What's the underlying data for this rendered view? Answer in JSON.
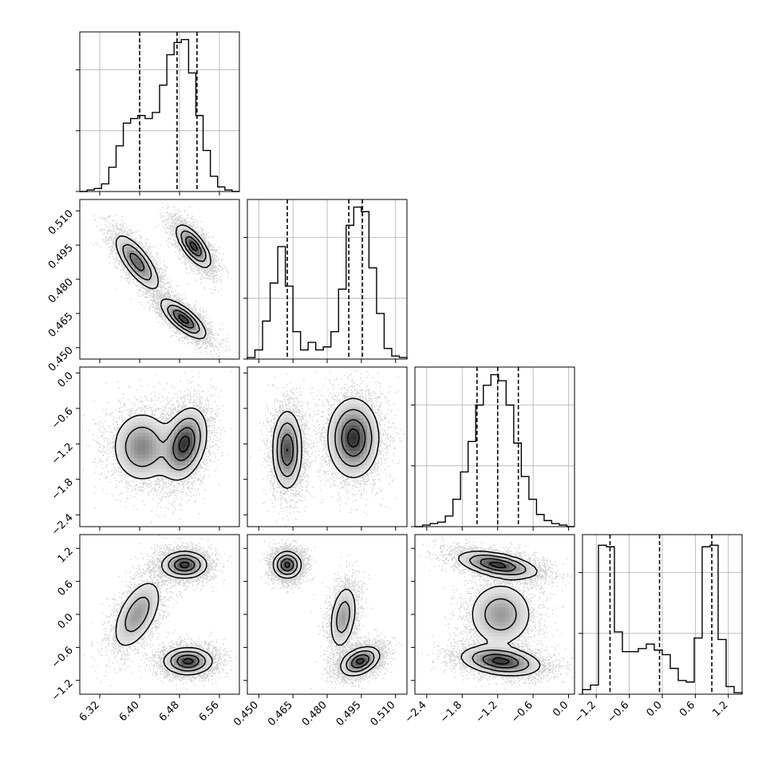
{
  "chart_data": {
    "type": "corner",
    "parameters": 4,
    "axes": [
      {
        "range": [
          6.28,
          6.6
        ],
        "ticks": [
          6.32,
          6.4,
          6.48,
          6.56
        ],
        "tick_labels": [
          "6.32",
          "6.40",
          "6.48",
          "6.56"
        ]
      },
      {
        "range": [
          0.445,
          0.515
        ],
        "ticks": [
          0.45,
          0.465,
          0.48,
          0.495,
          0.51
        ],
        "tick_labels": [
          "0.450",
          "0.465",
          "0.480",
          "0.495",
          "0.510"
        ]
      },
      {
        "range": [
          -2.6,
          0.1
        ],
        "ticks": [
          -2.4,
          -1.8,
          -1.2,
          -0.6,
          0.0
        ],
        "tick_labels": [
          "−2.4",
          "−1.8",
          "−1.2",
          "−0.6",
          "0.0"
        ]
      },
      {
        "range": [
          -1.45,
          1.45
        ],
        "ticks": [
          -1.2,
          -0.6,
          0.0,
          0.6,
          1.2
        ],
        "tick_labels": [
          "−1.2",
          "−0.6",
          "0.0",
          "0.6",
          "1.2"
        ]
      }
    ],
    "histograms": [
      {
        "param": 0,
        "bins_lo": 6.28,
        "bins_hi": 6.6,
        "counts": [
          0,
          0.01,
          0.02,
          0.05,
          0.16,
          0.3,
          0.45,
          0.48,
          0.5,
          0.48,
          0.52,
          0.7,
          0.9,
          0.98,
          1.0,
          0.78,
          0.5,
          0.27,
          0.1,
          0.03,
          0.01,
          0
        ],
        "quantiles": [
          6.4,
          6.475,
          6.515
        ],
        "hist_ylim": [
          0,
          1.05
        ]
      },
      {
        "param": 1,
        "bins_lo": 0.445,
        "bins_hi": 0.515,
        "counts": [
          0.01,
          0.06,
          0.25,
          0.5,
          0.74,
          0.48,
          0.18,
          0.06,
          0.11,
          0.06,
          0.08,
          0.18,
          0.46,
          0.88,
          1.0,
          0.97,
          0.6,
          0.3,
          0.07,
          0.02,
          0.01
        ],
        "quantiles": [
          0.4625,
          0.4895,
          0.4955
        ],
        "hist_ylim": [
          0,
          1.05
        ]
      },
      {
        "param": 2,
        "bins_lo": -2.6,
        "bins_hi": 0.1,
        "counts": [
          0,
          0.01,
          0.02,
          0.03,
          0.07,
          0.18,
          0.36,
          0.56,
          0.8,
          0.93,
          1.0,
          0.96,
          0.8,
          0.55,
          0.33,
          0.18,
          0.08,
          0.04,
          0.02,
          0.01,
          0.0
        ],
        "quantiles": [
          -1.55,
          -1.2,
          -0.85
        ],
        "hist_ylim": [
          0,
          1.05
        ]
      },
      {
        "param": 3,
        "bins_lo": -1.45,
        "bins_hi": 1.45,
        "counts": [
          0.03,
          0.06,
          0.98,
          0.97,
          0.41,
          0.28,
          0.28,
          0.3,
          0.33,
          0.29,
          0.26,
          0.17,
          0.09,
          0.08,
          0.37,
          0.97,
          0.98,
          0.36,
          0.05,
          0.01
        ],
        "quantiles": [
          -0.95,
          -0.05,
          0.9
        ],
        "hist_ylim": [
          0,
          1.05
        ]
      }
    ],
    "pair_modes": [
      {
        "x_param": 0,
        "y_param": 1,
        "modes": [
          {
            "cx": 6.395,
            "cy": 0.4875,
            "sx": 0.022,
            "sy": 0.006,
            "rho": -0.75,
            "w": 0.8
          },
          {
            "cx": 6.508,
            "cy": 0.4945,
            "sx": 0.017,
            "sy": 0.0046,
            "rho": -0.7,
            "w": 1.0
          },
          {
            "cx": 6.488,
            "cy": 0.4625,
            "sx": 0.022,
            "sy": 0.0042,
            "rho": -0.75,
            "w": 1.0
          }
        ]
      },
      {
        "x_param": 0,
        "y_param": 2,
        "modes": [
          {
            "cx": 6.405,
            "cy": -1.25,
            "sx": 0.03,
            "sy": 0.3,
            "rho": 0.0,
            "w": 0.65
          },
          {
            "cx": 6.49,
            "cy": -1.2,
            "sx": 0.022,
            "sy": 0.3,
            "rho": 0.3,
            "w": 1.0
          }
        ]
      },
      {
        "x_param": 1,
        "y_param": 2,
        "modes": [
          {
            "cx": 0.4625,
            "cy": -1.3,
            "sx": 0.0032,
            "sy": 0.33,
            "rho": 0.0,
            "w": 0.9
          },
          {
            "cx": 0.4915,
            "cy": -1.1,
            "sx": 0.0055,
            "sy": 0.33,
            "rho": 0.0,
            "w": 1.0
          }
        ]
      },
      {
        "x_param": 0,
        "y_param": 3,
        "modes": [
          {
            "cx": 6.395,
            "cy": 0.0,
            "sx": 0.025,
            "sy": 0.33,
            "rho": 0.55,
            "w": 0.55
          },
          {
            "cx": 6.49,
            "cy": 0.9,
            "sx": 0.022,
            "sy": 0.12,
            "rho": 0.0,
            "w": 1.0
          },
          {
            "cx": 6.497,
            "cy": -0.85,
            "sx": 0.024,
            "sy": 0.12,
            "rho": 0.0,
            "w": 1.0
          }
        ]
      },
      {
        "x_param": 1,
        "y_param": 3,
        "modes": [
          {
            "cx": 0.4625,
            "cy": 0.9,
            "sx": 0.003,
            "sy": 0.12,
            "rho": 0.0,
            "w": 1.0
          },
          {
            "cx": 0.487,
            "cy": -0.05,
            "sx": 0.003,
            "sy": 0.3,
            "rho": 0.3,
            "w": 0.55
          },
          {
            "cx": 0.4945,
            "cy": -0.85,
            "sx": 0.0042,
            "sy": 0.13,
            "rho": 0.4,
            "w": 1.0
          }
        ]
      },
      {
        "x_param": 2,
        "y_param": 3,
        "modes": [
          {
            "cx": -1.2,
            "cy": 0.9,
            "sx": 0.33,
            "sy": 0.12,
            "rho": -0.5,
            "w": 1.0
          },
          {
            "cx": -1.15,
            "cy": 0.0,
            "sx": 0.28,
            "sy": 0.3,
            "rho": 0.0,
            "w": 0.55
          },
          {
            "cx": -1.15,
            "cy": -0.85,
            "sx": 0.33,
            "sy": 0.13,
            "rho": -0.3,
            "w": 1.0
          }
        ]
      }
    ],
    "title": "",
    "legend": "none",
    "grid": true,
    "colors": {
      "line": "#000000",
      "grid": "#b0b0b0",
      "scatter": "#000000"
    }
  }
}
